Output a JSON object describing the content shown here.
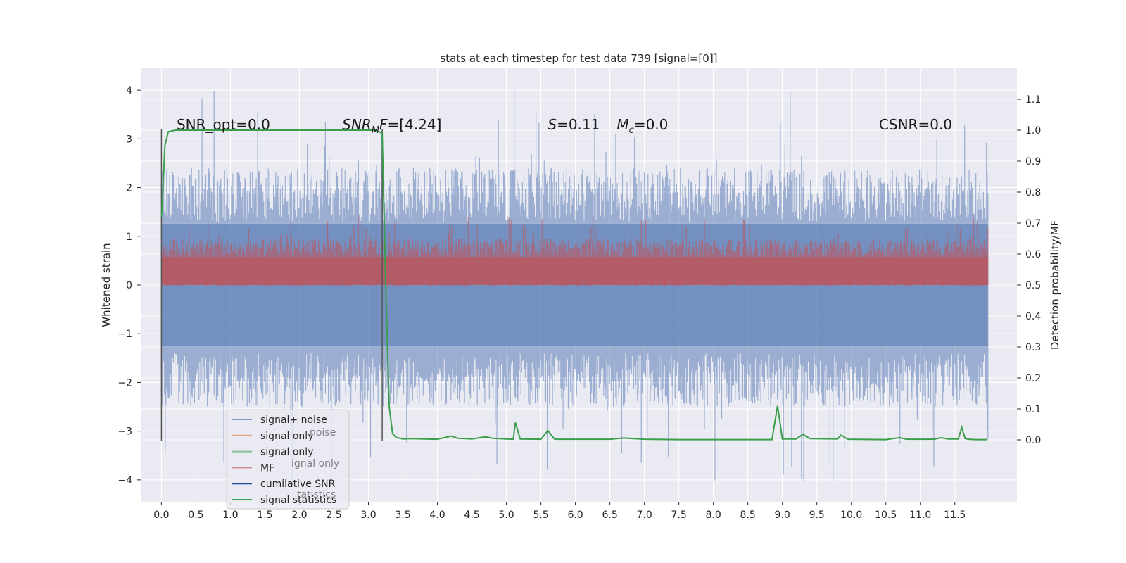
{
  "chart_data": {
    "type": "line",
    "title": "stats at each timestep for test data 739 [signal=[0]]",
    "xlabel": "",
    "ylabel": "Whitened strain",
    "ylabel_right": "Detection probability/MF",
    "xlim": [
      -0.3,
      12.4
    ],
    "ylim": [
      -4.45,
      4.45
    ],
    "ylim_right": [
      -0.2,
      1.2
    ],
    "x_ticks": [
      0.0,
      0.5,
      1.0,
      1.5,
      2.0,
      2.5,
      3.0,
      3.5,
      4.0,
      4.5,
      5.0,
      5.5,
      6.0,
      6.5,
      7.0,
      7.5,
      8.0,
      8.5,
      9.0,
      9.5,
      10.0,
      10.5,
      11.0,
      11.5
    ],
    "x_tick_labels": [
      "0.0",
      "0.5",
      "1.0",
      "1.5",
      "2.0",
      "2.5",
      "3.0",
      "3.5",
      "4.0",
      "4.5",
      "5.0",
      "5.5",
      "6.0",
      "6.5",
      "7.0",
      "7.5",
      "8.0",
      "8.5",
      "9.0",
      "9.5",
      "10.0",
      "10.5",
      "11.0",
      "11.5"
    ],
    "y_ticks": [
      -4,
      -3,
      -2,
      -1,
      0,
      1,
      2,
      3,
      4
    ],
    "y_tick_labels": [
      "−4",
      "−3",
      "−2",
      "−1",
      "0",
      "1",
      "2",
      "3",
      "4"
    ],
    "y_right_ticks": [
      0.0,
      0.1,
      0.2,
      0.3,
      0.4,
      0.5,
      0.6,
      0.7,
      0.8,
      0.9,
      1.0,
      1.1
    ],
    "y_right_tick_labels": [
      "0.0",
      "0.1",
      "0.2",
      "0.3",
      "0.4",
      "0.5",
      "0.6",
      "0.7",
      "0.8",
      "0.9",
      "1.0",
      "1.1"
    ],
    "grid": true,
    "noise_band": {
      "x_start": 0.0,
      "x_end": 11.98,
      "low": -2.0,
      "high": 1.9,
      "spike_max": 4.1,
      "spike_min": -4.1
    },
    "mf_band": {
      "x_start": 0.0,
      "x_end": 11.98,
      "low": 0.5,
      "high": 0.62,
      "spike_max": 0.72
    },
    "vertical_markers": [
      {
        "x": 0.0,
        "y_low": -3.2,
        "y_high": 3.2
      },
      {
        "x": 3.2,
        "y_low": -3.2,
        "y_high": 3.2
      }
    ],
    "series": [
      {
        "name": "signal+ noise",
        "color": "#4c72b0",
        "axis": "left"
      },
      {
        "name": "signal only",
        "color": "#dd8452",
        "axis": "left"
      },
      {
        "name": "signal only",
        "color": "#55a868",
        "axis": "left"
      },
      {
        "name": "MF",
        "color": "#c44e52",
        "axis": "right"
      },
      {
        "name": "cumilative SNR",
        "color": "#1f4e9c",
        "axis": "left"
      },
      {
        "name": "signal statistics",
        "color": "#3a9e4a",
        "axis": "right",
        "x": [
          0.0,
          0.02,
          0.05,
          0.1,
          0.2,
          0.5,
          1.0,
          1.5,
          2.0,
          2.5,
          3.0,
          3.1,
          3.2,
          3.25,
          3.3,
          3.35,
          3.4,
          3.5,
          3.6,
          3.8,
          4.0,
          4.2,
          4.3,
          4.5,
          4.7,
          4.8,
          5.0,
          5.1,
          5.13,
          5.2,
          5.5,
          5.6,
          5.7,
          6.0,
          6.5,
          6.7,
          7.0,
          7.5,
          8.0,
          8.5,
          8.85,
          8.93,
          9.0,
          9.2,
          9.3,
          9.4,
          9.8,
          9.85,
          9.95,
          10.5,
          10.7,
          10.8,
          11.2,
          11.3,
          11.4,
          11.55,
          11.6,
          11.65,
          11.7,
          11.8,
          11.97
        ],
        "y": [
          0.72,
          0.8,
          0.95,
          0.995,
          1.0,
          1.0,
          1.0,
          1.0,
          1.0,
          1.0,
          1.0,
          1.0,
          0.99,
          0.5,
          0.11,
          0.02,
          0.008,
          0.003,
          0.004,
          0.003,
          0.002,
          0.012,
          0.005,
          0.003,
          0.01,
          0.005,
          0.003,
          0.002,
          0.056,
          0.003,
          0.002,
          0.03,
          0.002,
          0.002,
          0.002,
          0.006,
          0.002,
          0.001,
          0.001,
          0.001,
          0.001,
          0.11,
          0.003,
          0.003,
          0.018,
          0.004,
          0.003,
          0.015,
          0.002,
          0.001,
          0.007,
          0.002,
          0.002,
          0.007,
          0.003,
          0.003,
          0.04,
          0.004,
          0.002,
          0.001,
          0.001
        ]
      }
    ],
    "annotations": [
      {
        "id": "snr-opt",
        "text": "SNR_opt=0.0",
        "x": 0.22,
        "y_right": 1.0
      },
      {
        "id": "snr-mf",
        "main": "SNR",
        "sub": "M",
        "rest": "F=[4.24]",
        "x": 2.62,
        "y_right": 1.0
      },
      {
        "id": "s-value",
        "main": "S",
        "rest": "=0.11",
        "x": 5.6,
        "y_right": 1.0
      },
      {
        "id": "mc-value",
        "main": "M",
        "sub": "c",
        "rest": "=0.0",
        "x": 6.6,
        "y_right": 1.0
      },
      {
        "id": "csnr",
        "text": "CSNR=0.0",
        "x": 10.4,
        "y_right": 1.0
      }
    ],
    "legend_position": "lower-left",
    "legend_overlap_text": [
      "noise",
      "ignal only",
      "tatistics"
    ],
    "colors": {
      "plot_bg": "#eaeaf2",
      "grid": "#ffffff",
      "noise": "#4c72b0",
      "mf": "#c44e52",
      "stats": "#3a9e4a",
      "marker": "#555555"
    }
  }
}
